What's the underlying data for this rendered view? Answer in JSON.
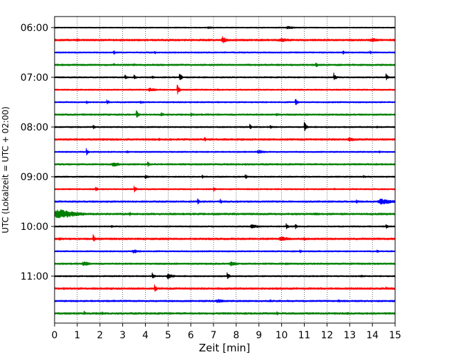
{
  "chart_data": {
    "type": "line",
    "title": "",
    "xlabel": "Zeit  [min]",
    "ylabel": "UTC (Lokalzeit = UTC + 02:00)",
    "xlim": [
      0,
      15
    ],
    "x_ticks": [
      "0",
      "1",
      "2",
      "3",
      "4",
      "5",
      "6",
      "7",
      "8",
      "9",
      "10",
      "11",
      "12",
      "13",
      "14",
      "15"
    ],
    "y_ticks": [
      {
        "label": "06:00",
        "row": 0
      },
      {
        "label": "07:00",
        "row": 4
      },
      {
        "label": "08:00",
        "row": 8
      },
      {
        "label": "09:00",
        "row": 12
      },
      {
        "label": "10:00",
        "row": 16
      },
      {
        "label": "11:00",
        "row": 20
      }
    ],
    "row_minutes": 15,
    "grid_x": true,
    "colors": [
      "#000000",
      "#ff0000",
      "#0000ff",
      "#008000"
    ],
    "series": [
      {
        "start": "06:00",
        "noise": 0.12,
        "events": [
          [
            10.3,
            0.3,
            0.4
          ],
          [
            6.8,
            0.25,
            0.3
          ]
        ]
      },
      {
        "start": "06:15",
        "noise": 0.2,
        "events": [
          [
            7.4,
            0.8,
            0.15
          ],
          [
            10.0,
            0.4,
            0.6
          ],
          [
            14.0,
            0.4,
            0.5
          ],
          [
            1.0,
            0.3,
            0.2
          ]
        ]
      },
      {
        "start": "06:30",
        "noise": 0.15,
        "events": [
          [
            2.6,
            0.5,
            0.05
          ],
          [
            4.4,
            0.4,
            0.05
          ],
          [
            12.7,
            0.5,
            0.05
          ],
          [
            13.9,
            0.4,
            0.05
          ]
        ]
      },
      {
        "start": "06:45",
        "noise": 0.18,
        "events": [
          [
            2.6,
            0.4,
            0.05
          ],
          [
            11.5,
            0.7,
            0.05
          ],
          [
            3.5,
            0.3,
            0.1
          ]
        ]
      },
      {
        "start": "07:00",
        "noise": 0.15,
        "events": [
          [
            3.1,
            0.6,
            0.05
          ],
          [
            3.5,
            0.6,
            0.05
          ],
          [
            5.5,
            1.0,
            0.05
          ],
          [
            12.3,
            1.0,
            0.05
          ],
          [
            14.6,
            0.8,
            0.05
          ],
          [
            4.3,
            0.5,
            0.05
          ]
        ]
      },
      {
        "start": "07:15",
        "noise": 0.15,
        "events": [
          [
            5.4,
            1.2,
            0.05
          ],
          [
            4.2,
            0.4,
            0.3
          ],
          [
            7.2,
            0.2,
            0.3
          ]
        ]
      },
      {
        "start": "07:30",
        "noise": 0.15,
        "events": [
          [
            2.3,
            0.6,
            0.05
          ],
          [
            10.6,
            0.9,
            0.05
          ],
          [
            1.4,
            0.4,
            0.05
          ],
          [
            3.8,
            0.3,
            0.2
          ]
        ]
      },
      {
        "start": "07:45",
        "noise": 0.18,
        "events": [
          [
            3.6,
            1.0,
            0.05
          ],
          [
            4.7,
            0.5,
            0.1
          ],
          [
            6.0,
            0.5,
            0.05
          ],
          [
            9.8,
            0.3,
            0.3
          ]
        ]
      },
      {
        "start": "08:00",
        "noise": 0.15,
        "events": [
          [
            11.0,
            1.2,
            0.05
          ],
          [
            1.7,
            0.5,
            0.05
          ],
          [
            8.6,
            0.6,
            0.05
          ],
          [
            9.5,
            0.5,
            0.05
          ],
          [
            14.2,
            0.3,
            0.05
          ]
        ]
      },
      {
        "start": "08:15",
        "noise": 0.2,
        "events": [
          [
            6.6,
            0.6,
            0.05
          ],
          [
            13.0,
            0.4,
            0.4
          ],
          [
            4.6,
            0.3,
            0.2
          ]
        ]
      },
      {
        "start": "08:30",
        "noise": 0.15,
        "events": [
          [
            1.4,
            0.8,
            0.05
          ],
          [
            9.0,
            0.4,
            0.3
          ],
          [
            3.2,
            0.3,
            0.1
          ],
          [
            14.3,
            0.3,
            0.05
          ]
        ]
      },
      {
        "start": "08:45",
        "noise": 0.18,
        "events": [
          [
            2.6,
            0.5,
            0.3
          ],
          [
            4.1,
            0.6,
            0.05
          ],
          [
            8.4,
            0.3,
            0.1
          ]
        ]
      },
      {
        "start": "09:00",
        "noise": 0.15,
        "events": [
          [
            4.0,
            0.5,
            0.1
          ],
          [
            8.4,
            0.6,
            0.05
          ],
          [
            6.5,
            0.4,
            0.05
          ],
          [
            13.6,
            0.4,
            0.05
          ]
        ]
      },
      {
        "start": "09:15",
        "noise": 0.15,
        "events": [
          [
            1.8,
            0.6,
            0.05
          ],
          [
            3.5,
            0.8,
            0.05
          ],
          [
            7.0,
            0.6,
            0.05
          ],
          [
            12.3,
            0.3,
            0.05
          ]
        ]
      },
      {
        "start": "09:30",
        "noise": 0.18,
        "events": [
          [
            6.3,
            0.6,
            0.05
          ],
          [
            7.3,
            0.6,
            0.05
          ],
          [
            14.4,
            0.6,
            0.6
          ],
          [
            13.3,
            0.4,
            0.1
          ]
        ]
      },
      {
        "start": "09:45",
        "noise": 0.2,
        "events": [
          [
            0.2,
            1.0,
            0.8
          ],
          [
            3.3,
            0.5,
            0.05
          ],
          [
            11.5,
            0.3,
            0.3
          ]
        ]
      },
      {
        "start": "10:00",
        "noise": 0.15,
        "events": [
          [
            8.7,
            0.4,
            0.4
          ],
          [
            10.2,
            0.7,
            0.05
          ],
          [
            10.6,
            0.6,
            0.05
          ],
          [
            14.6,
            0.6,
            0.05
          ],
          [
            2.5,
            0.4,
            0.05
          ]
        ]
      },
      {
        "start": "10:15",
        "noise": 0.2,
        "events": [
          [
            1.7,
            0.9,
            0.05
          ],
          [
            10.0,
            0.5,
            0.4
          ],
          [
            0.2,
            0.4,
            0.1
          ],
          [
            11.0,
            0.3,
            0.3
          ]
        ]
      },
      {
        "start": "10:30",
        "noise": 0.15,
        "events": [
          [
            3.5,
            0.4,
            0.3
          ],
          [
            10.8,
            0.4,
            0.05
          ],
          [
            14.2,
            0.3,
            0.1
          ]
        ]
      },
      {
        "start": "10:45",
        "noise": 0.18,
        "events": [
          [
            1.3,
            0.5,
            0.3
          ],
          [
            7.8,
            0.5,
            0.3
          ],
          [
            10.2,
            0.3,
            0.1
          ]
        ]
      },
      {
        "start": "11:00",
        "noise": 0.15,
        "events": [
          [
            4.3,
            0.8,
            0.05
          ],
          [
            5.0,
            0.6,
            0.2
          ],
          [
            7.6,
            0.8,
            0.05
          ],
          [
            13.5,
            0.3,
            0.1
          ]
        ]
      },
      {
        "start": "11:15",
        "noise": 0.2,
        "events": [
          [
            4.4,
            0.9,
            0.05
          ],
          [
            0.4,
            0.3,
            0.05
          ],
          [
            14.6,
            0.4,
            0.05
          ]
        ]
      },
      {
        "start": "11:30",
        "noise": 0.18,
        "events": [
          [
            7.2,
            0.4,
            0.4
          ],
          [
            9.5,
            0.3,
            0.1
          ],
          [
            12.5,
            0.3,
            0.2
          ]
        ]
      },
      {
        "start": "11:45",
        "noise": 0.2,
        "events": [
          [
            1.3,
            0.5,
            0.05
          ],
          [
            2.1,
            0.4,
            0.05
          ],
          [
            9.8,
            0.4,
            0.05
          ],
          [
            12.9,
            0.3,
            0.1
          ]
        ]
      }
    ]
  }
}
